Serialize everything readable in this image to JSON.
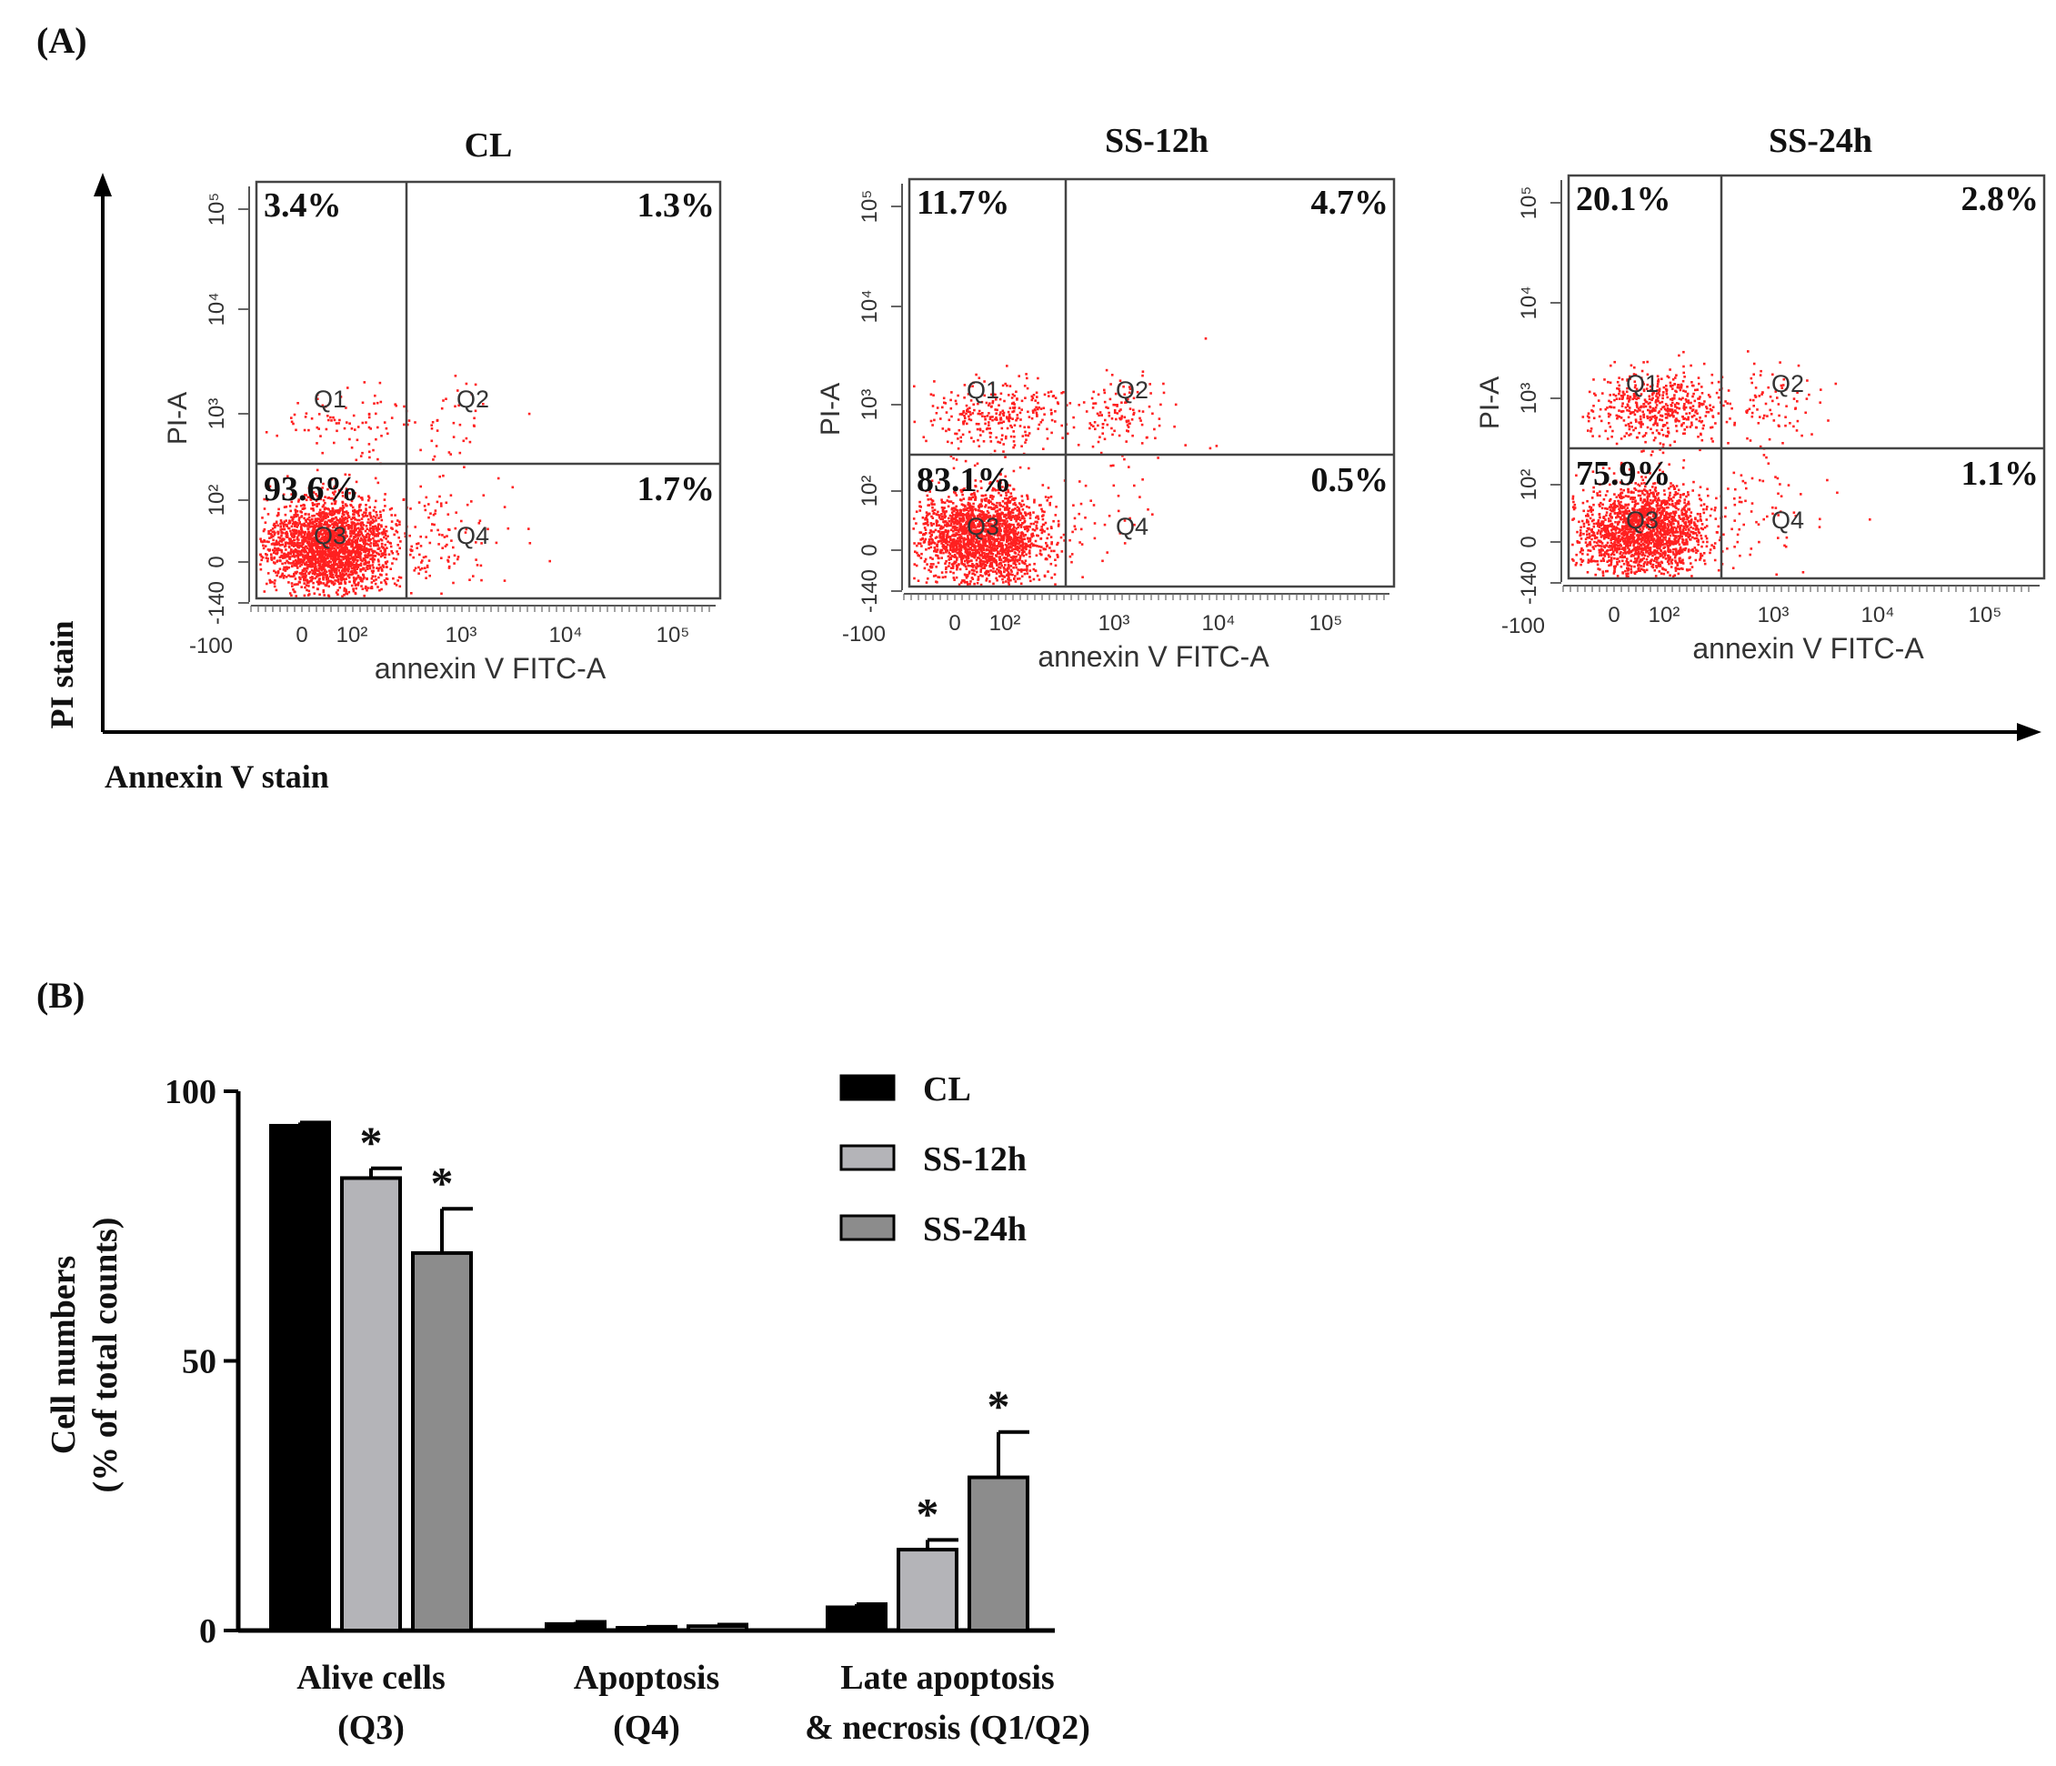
{
  "figure": {
    "panel_a_label": "(A)",
    "panel_b_label": "(B)",
    "pi_stain_label": "PI stain",
    "annexin_stain_label": "Annexin V stain"
  },
  "chart_data": [
    {
      "type": "scatter",
      "subtype": "flow-cytometry-quadrant",
      "title": "CL",
      "xlabel": "annexin V FITC-A",
      "ylabel": "PI-A",
      "x_ticks": [
        "-100",
        "0",
        "10²",
        "10³",
        "10⁴",
        "10⁵"
      ],
      "y_ticks": [
        "-140",
        "0",
        "10²",
        "10³",
        "10⁴",
        "10⁵"
      ],
      "gate_labels": [
        "Q1",
        "Q2",
        "Q3",
        "Q4"
      ],
      "quadrants": {
        "Q1": "3.4%",
        "Q2": "1.3%",
        "Q3": "93.6%",
        "Q4": "1.7%"
      },
      "point_color": "#ff2020"
    },
    {
      "type": "scatter",
      "subtype": "flow-cytometry-quadrant",
      "title": "SS-12h",
      "xlabel": "annexin V FITC-A",
      "ylabel": "PI-A",
      "x_ticks": [
        "-100",
        "0",
        "10²",
        "10³",
        "10⁴",
        "10⁵"
      ],
      "y_ticks": [
        "-140",
        "0",
        "10²",
        "10³",
        "10⁴",
        "10⁵"
      ],
      "gate_labels": [
        "Q1",
        "Q2",
        "Q3",
        "Q4"
      ],
      "quadrants": {
        "Q1": "11.7%",
        "Q2": "4.7%",
        "Q3": "83.1%",
        "Q4": "0.5%"
      },
      "point_color": "#ff2020"
    },
    {
      "type": "scatter",
      "subtype": "flow-cytometry-quadrant",
      "title": "SS-24h",
      "xlabel": "annexin V FITC-A",
      "ylabel": "PI-A",
      "x_ticks": [
        "-100",
        "0",
        "10²",
        "10³",
        "10⁴",
        "10⁵"
      ],
      "y_ticks": [
        "-140",
        "0",
        "10²",
        "10³",
        "10⁴",
        "10⁵"
      ],
      "gate_labels": [
        "Q1",
        "Q2",
        "Q3",
        "Q4"
      ],
      "quadrants": {
        "Q1": "20.1%",
        "Q2": "2.8%",
        "Q3": "75.9%",
        "Q4": "1.1%"
      },
      "point_color": "#ff2020"
    },
    {
      "type": "bar",
      "title": "",
      "categories": [
        [
          "Alive cells",
          "(Q3)"
        ],
        [
          "Apoptosis",
          "(Q4)"
        ],
        [
          "Late apoptosis",
          "& necrosis (Q1/Q2)"
        ]
      ],
      "ylabel_lines": [
        "Cell numbers",
        "(% of total counts)"
      ],
      "ylim": [
        0,
        100
      ],
      "yticks": [
        0,
        50,
        100
      ],
      "series": [
        {
          "name": "CL",
          "color": "#000000",
          "values": [
            93.6,
            1.2,
            4.3
          ],
          "errors": [
            0.6,
            0.4,
            0.6
          ],
          "significant": [
            false,
            false,
            false
          ]
        },
        {
          "name": "SS-12h",
          "color": "#b4b4b8",
          "values": [
            83.9,
            0.5,
            15.0
          ],
          "errors": [
            1.8,
            0.2,
            1.8
          ],
          "significant": [
            true,
            false,
            true
          ]
        },
        {
          "name": "SS-24h",
          "color": "#8c8c8c",
          "values": [
            70.0,
            0.8,
            28.4
          ],
          "errors": [
            8.2,
            0.3,
            8.4
          ],
          "significant": [
            true,
            false,
            true
          ]
        }
      ],
      "significance_marker": "*",
      "legend_position": "top-right"
    }
  ]
}
